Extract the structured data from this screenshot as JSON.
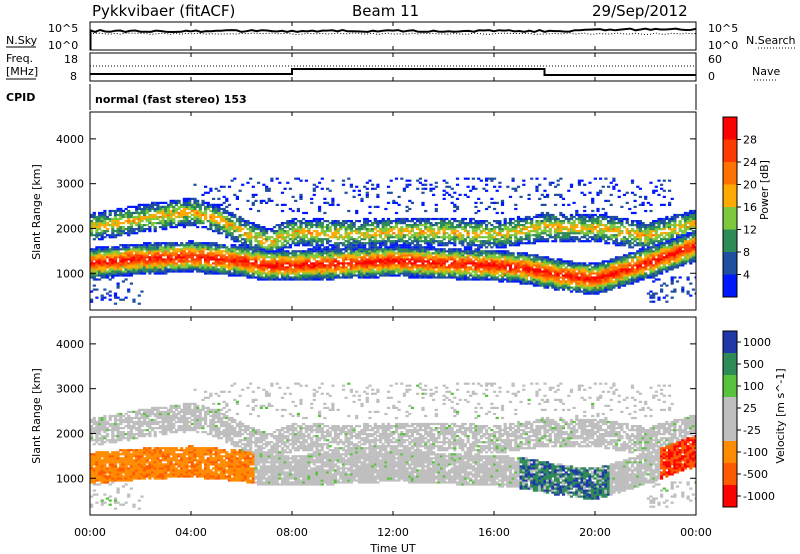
{
  "header": {
    "station": "Pykkvibaer (fitACF)",
    "beam": "Beam 11",
    "date": "29/Sep/2012"
  },
  "top_panel": {
    "left_label": "N.Sky",
    "right_label": "N.Search",
    "left_ticks": [
      "10^5",
      "10^0"
    ],
    "right_ticks": [
      "10^5",
      "10^0"
    ]
  },
  "freq_panel": {
    "left_label_1": "Freq.",
    "left_label_2": "[MHz]",
    "right_label": "Nave",
    "left_ticks": [
      "18",
      "8"
    ],
    "right_ticks": [
      "60",
      "0"
    ]
  },
  "cpid": {
    "label": "CPID",
    "mode_text": "normal (fast stereo) 153"
  },
  "power_panel": {
    "ylabel": "Slant Range [km]",
    "cbar_label": "Power [dB]",
    "cbar_ticks": [
      "28",
      "24",
      "20",
      "16",
      "12",
      "8",
      "4"
    ],
    "cbar_colors": [
      "#ff0000",
      "#ff3a00",
      "#ff7200",
      "#ffaa00",
      "#7dc83c",
      "#2e8b57",
      "#1f4fa0",
      "#0018ff"
    ]
  },
  "velocity_panel": {
    "ylabel": "Slant Range [km]",
    "cbar_label": "Velocity [m s^-1]",
    "cbar_ticks": [
      "1000",
      "500",
      "100",
      "25",
      "-25",
      "-100",
      "-500",
      "-1000"
    ],
    "cbar_colors": [
      "#1f3aa8",
      "#2e8b57",
      "#58c23c",
      "#bfbfbf",
      "#bfbfbf",
      "#ff8c00",
      "#ff5a00",
      "#ff0000"
    ]
  },
  "xaxis": {
    "label": "Time UT",
    "ticks": [
      "00:00",
      "04:00",
      "08:00",
      "12:00",
      "16:00",
      "20:00",
      "00:00"
    ]
  },
  "chart_data": [
    {
      "type": "heatmap",
      "title": "",
      "xlabel": "",
      "ylabel": "Slant Range [km]",
      "xlim": [
        0,
        24
      ],
      "ylim": [
        180,
        4600
      ],
      "yticks": [
        1000,
        2000,
        3000,
        4000
      ],
      "colorbar": "Power [dB]",
      "bands": [
        {
          "name": "primary",
          "x": [
            0,
            2,
            4,
            6,
            7,
            8,
            10,
            12,
            14,
            16,
            17,
            18,
            19,
            20,
            22,
            24
          ],
          "y": [
            1200,
            1300,
            1350,
            1250,
            1150,
            1150,
            1200,
            1250,
            1200,
            1150,
            1100,
            1000,
            900,
            850,
            1200,
            1600
          ]
        },
        {
          "name": "secondary",
          "x": [
            0,
            2,
            4,
            5,
            6,
            7,
            8,
            10,
            12,
            14,
            16,
            18,
            20,
            22,
            24
          ],
          "y": [
            2000,
            2200,
            2350,
            2200,
            1900,
            1650,
            1900,
            1850,
            1900,
            1900,
            1850,
            2000,
            2000,
            1800,
            2100
          ]
        }
      ]
    },
    {
      "type": "heatmap",
      "title": "",
      "xlabel": "Time UT",
      "ylabel": "Slant Range [km]",
      "xlim": [
        0,
        24
      ],
      "ylim": [
        180,
        4600
      ],
      "yticks": [
        1000,
        2000,
        3000,
        4000
      ],
      "colorbar": "Velocity [m s^-1]"
    }
  ]
}
